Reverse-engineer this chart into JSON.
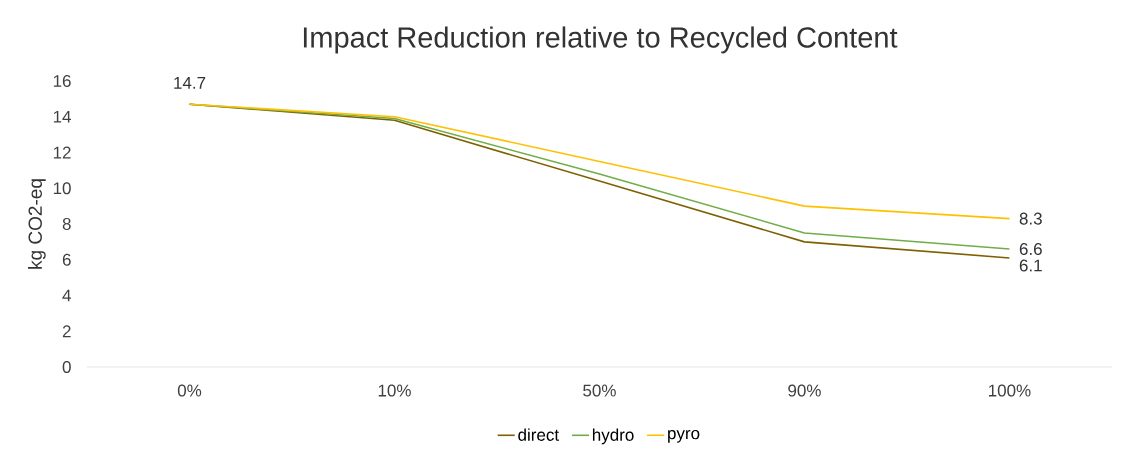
{
  "chart_data": {
    "type": "line",
    "title": "Impact Reduction relative to Recycled Content",
    "ylabel": "kg CO2-eq",
    "categories": [
      "0%",
      "10%",
      "50%",
      "90%",
      "100%"
    ],
    "series": [
      {
        "name": "direct",
        "color": "#7f6000",
        "values": [
          14.7,
          13.8,
          10.4,
          7.0,
          6.1
        ],
        "value_labels": [
          null,
          null,
          null,
          null,
          "6.1"
        ]
      },
      {
        "name": "hydro",
        "color": "#70ad47",
        "values": [
          14.7,
          13.9,
          10.8,
          7.5,
          6.6
        ],
        "value_labels": [
          null,
          null,
          null,
          null,
          "6.6"
        ]
      },
      {
        "name": "pyro",
        "color": "#ffc000",
        "values": [
          14.7,
          14.0,
          11.5,
          9.0,
          8.3
        ],
        "value_labels": [
          "14.7",
          null,
          null,
          null,
          "8.3"
        ]
      }
    ],
    "ylim": [
      0,
      16
    ],
    "yticks": [
      0,
      2,
      4,
      6,
      8,
      10,
      12,
      14,
      16
    ],
    "grid": false,
    "legend": "bottom",
    "marker": "none",
    "line_style": "solid"
  }
}
